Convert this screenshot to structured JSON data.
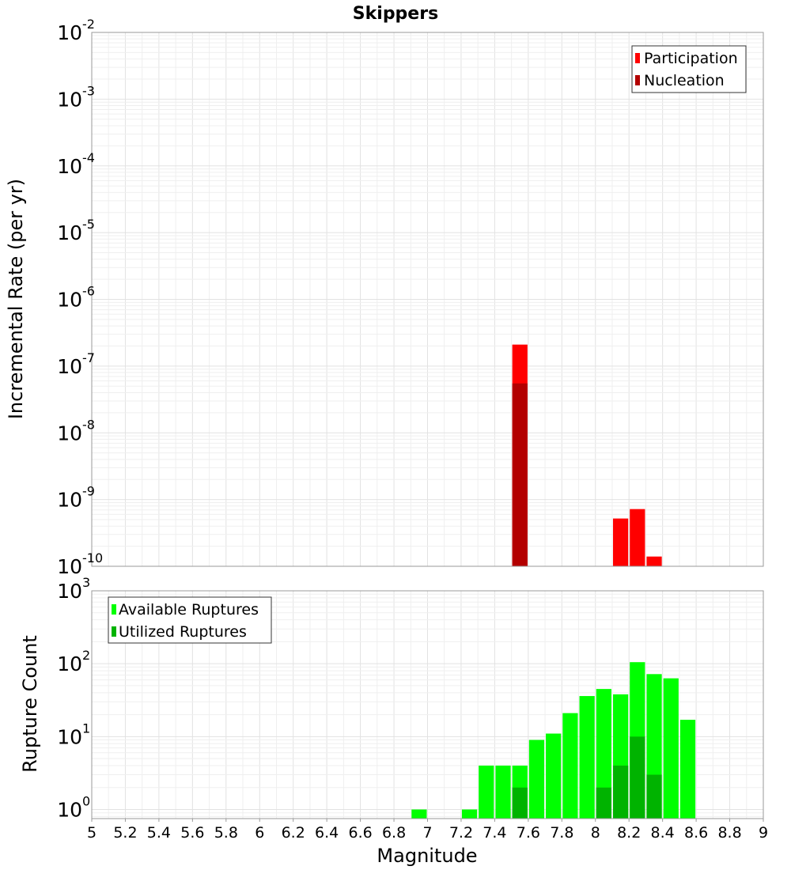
{
  "chart_data": [
    {
      "type": "bar",
      "title": "Skippers",
      "ylabel": "Incremental Rate (per yr)",
      "xlabel": "",
      "xlim": [
        5,
        9
      ],
      "ylim": [
        1e-10,
        0.01
      ],
      "yscale": "log",
      "bin_width": 0.1,
      "grid": true,
      "legend_position": "top-right",
      "y_ticks": [
        {
          "base": "10",
          "exp": "-10",
          "value": 1e-10
        },
        {
          "base": "10",
          "exp": "-9",
          "value": 1e-09
        },
        {
          "base": "10",
          "exp": "-8",
          "value": 1e-08
        },
        {
          "base": "10",
          "exp": "-7",
          "value": 1e-07
        },
        {
          "base": "10",
          "exp": "-6",
          "value": 1e-06
        },
        {
          "base": "10",
          "exp": "-5",
          "value": 1e-05
        },
        {
          "base": "10",
          "exp": "-4",
          "value": 0.0001
        },
        {
          "base": "10",
          "exp": "-3",
          "value": 0.001
        },
        {
          "base": "10",
          "exp": "-2",
          "value": 0.01
        }
      ],
      "series": [
        {
          "name": "Participation",
          "color": "#ff0000",
          "x": [
            7.55,
            8.15,
            8.25,
            8.35
          ],
          "values": [
            2.1e-07,
            5.2e-10,
            7.2e-10,
            1.4e-10
          ]
        },
        {
          "name": "Nucleation",
          "color": "#b30000",
          "x": [
            7.55
          ],
          "values": [
            5.5e-08
          ]
        }
      ]
    },
    {
      "type": "bar",
      "ylabel": "Rupture Count",
      "xlabel": "Magnitude",
      "xlim": [
        5,
        9
      ],
      "ylim": [
        0.75,
        1000
      ],
      "yscale": "log",
      "bin_width": 0.1,
      "grid": true,
      "legend_position": "top-left",
      "y_ticks": [
        {
          "base": "10",
          "exp": "0",
          "value": 1
        },
        {
          "base": "10",
          "exp": "1",
          "value": 10
        },
        {
          "base": "10",
          "exp": "2",
          "value": 100
        },
        {
          "base": "10",
          "exp": "3",
          "value": 1000
        }
      ],
      "x_ticks": [
        "5",
        "5.2",
        "5.4",
        "5.6",
        "5.8",
        "6",
        "6.2",
        "6.4",
        "6.6",
        "6.8",
        "7",
        "7.2",
        "7.4",
        "7.6",
        "7.8",
        "8",
        "8.2",
        "8.4",
        "8.6",
        "8.8",
        "9"
      ],
      "series": [
        {
          "name": "Available Ruptures",
          "color": "#00ff00",
          "x": [
            6.95,
            7.25,
            7.35,
            7.45,
            7.55,
            7.65,
            7.75,
            7.85,
            7.95,
            8.05,
            8.15,
            8.25,
            8.35,
            8.45,
            8.55
          ],
          "values": [
            1,
            1,
            4,
            4,
            4,
            9,
            11,
            21,
            36,
            45,
            38,
            105,
            72,
            63,
            17
          ]
        },
        {
          "name": "Utilized Ruptures",
          "color": "#00b300",
          "x": [
            7.55,
            8.05,
            8.15,
            8.25,
            8.35
          ],
          "values": [
            2,
            2,
            4,
            10,
            3
          ]
        }
      ]
    }
  ]
}
